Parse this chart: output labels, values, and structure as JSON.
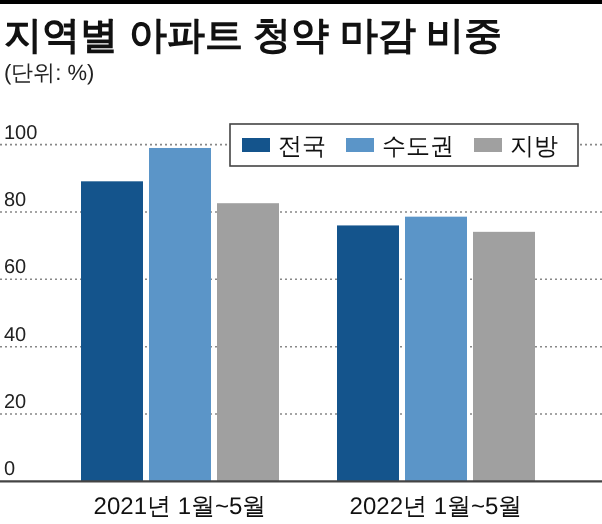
{
  "chart_data": {
    "type": "bar",
    "title": "지역별 아파트 청약 마감 비중",
    "subtitle": "(단위: %)",
    "categories": [
      "2021년 1월~5월",
      "2022년 1월~5월"
    ],
    "series": [
      {
        "name": "전국",
        "color": "#14548c",
        "values": [
          89.1,
          76.0
        ]
      },
      {
        "name": "수도권",
        "color": "#5b95c8",
        "values": [
          99.0,
          78.6
        ]
      },
      {
        "name": "지방",
        "color": "#a0a0a0",
        "values": [
          82.6,
          74.1
        ]
      }
    ],
    "ylim": [
      0,
      100
    ],
    "yticks": [
      0,
      20,
      40,
      60,
      80,
      100
    ],
    "grid": "y",
    "legend": "top right"
  }
}
